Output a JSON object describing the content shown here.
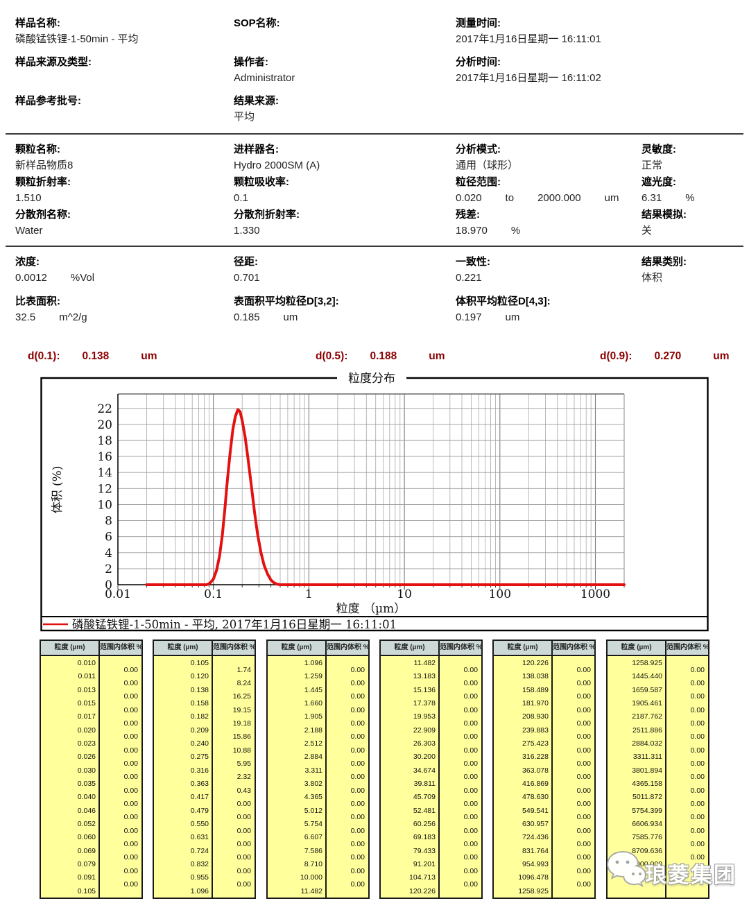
{
  "colors": {
    "d_row_red": "#8b0000",
    "curve_red": "#e41111",
    "table_header_bg": "#ccd9d6",
    "table_body_bg": "#ffff9c",
    "grid_gray": "#9a9a9a"
  },
  "info_sections": [
    {
      "columns": [
        [
          {
            "label": "样品名称:",
            "parts": [
              "磷酸锰铁锂-1-50min - 平均"
            ]
          },
          {
            "label": "样品来源及类型:",
            "parts": []
          },
          {
            "label": "样品参考批号:",
            "parts": []
          }
        ],
        [
          {
            "label": "SOP名称:",
            "parts": []
          },
          {
            "label": "操作者:",
            "parts": [
              "Administrator"
            ]
          },
          {
            "label": "结果来源:",
            "parts": [
              "平均"
            ]
          }
        ],
        [
          {
            "label": "测量时间:",
            "parts": [
              "2017年1月16日星期一 16:11:01"
            ]
          },
          {
            "label": "分析时间:",
            "parts": [
              "2017年1月16日星期一 16:11:02"
            ]
          }
        ]
      ]
    },
    {
      "columns": [
        [
          {
            "label": "颗粒名称:",
            "parts": [
              "新样品物质8"
            ]
          },
          {
            "label": "颗粒折射率:",
            "parts": [
              "1.510"
            ]
          },
          {
            "label": "分散剂名称:",
            "parts": [
              "Water"
            ]
          }
        ],
        [
          {
            "label": "进样器名:",
            "parts": [
              "Hydro 2000SM (A)"
            ]
          },
          {
            "label": "颗粒吸收率:",
            "parts": [
              "0.1"
            ]
          },
          {
            "label": "分散剂折射率:",
            "parts": [
              "1.330"
            ]
          }
        ],
        [
          {
            "label": "分析模式:",
            "parts": [
              "通用（球形）"
            ]
          },
          {
            "label": "粒径范围:",
            "parts": [
              "0.020",
              "to",
              "2000.000",
              "um"
            ]
          },
          {
            "label": "残差:",
            "parts": [
              "18.970",
              "%"
            ]
          }
        ],
        [
          {
            "label": "灵敏度:",
            "parts": [
              "正常"
            ]
          },
          {
            "label": "遮光度:",
            "parts": [
              "6.31",
              "%"
            ]
          },
          {
            "label": "结果模拟:",
            "parts": [
              "关"
            ]
          }
        ]
      ]
    },
    {
      "columns": [
        [
          {
            "label": "浓度:",
            "parts": [
              "0.0012",
              "%Vol"
            ]
          },
          {
            "label": "比表面积:",
            "parts": [
              "32.5",
              "m^2/g"
            ]
          }
        ],
        [
          {
            "label": "径距:",
            "parts": [
              "0.701"
            ]
          },
          {
            "label": "表面积平均粒径D[3,2]:",
            "parts": [
              "0.185",
              "um"
            ]
          }
        ],
        [
          {
            "label": "一致性:",
            "parts": [
              "0.221"
            ]
          },
          {
            "label": "体积平均粒径D[4,3]:",
            "parts": [
              "0.197",
              "um"
            ]
          }
        ],
        [
          {
            "label": "结果类别:",
            "parts": [
              "体积"
            ]
          }
        ]
      ]
    }
  ],
  "d_values": [
    {
      "label": "d(0.1):",
      "value": "0.138",
      "unit": "um"
    },
    {
      "label": "d(0.5):",
      "value": "0.188",
      "unit": "um"
    },
    {
      "label": "d(0.9):",
      "value": "0.270",
      "unit": "um"
    }
  ],
  "chart_data": {
    "type": "line",
    "title": "粒度分布",
    "xlabel": "粒度 （µm）",
    "ylabel": "体积 (%)",
    "x_scale": "log",
    "xlim": [
      0.01,
      2000
    ],
    "ylim": [
      0,
      23.8
    ],
    "x_tick_labels": [
      "0.01",
      "0.1",
      "1",
      "10",
      "100",
      "1000"
    ],
    "x_ticks": [
      0.01,
      0.1,
      1,
      10,
      100,
      1000
    ],
    "y_ticks": [
      0,
      2,
      4,
      6,
      8,
      10,
      12,
      14,
      16,
      18,
      20,
      22
    ],
    "grid": true,
    "legend": "磷酸锰铁锂-1-50min - 平均, 2017年1月16日星期一 16:11:01",
    "series_color": "#e41111",
    "baseline_x": [
      0.02,
      2000
    ],
    "curve_points": [
      [
        0.085,
        0
      ],
      [
        0.092,
        0.2
      ],
      [
        0.1,
        0.7
      ],
      [
        0.108,
        1.8
      ],
      [
        0.116,
        3.6
      ],
      [
        0.124,
        6.2
      ],
      [
        0.132,
        9.5
      ],
      [
        0.14,
        13.0
      ],
      [
        0.15,
        16.6
      ],
      [
        0.16,
        19.4
      ],
      [
        0.17,
        21.0
      ],
      [
        0.18,
        21.85
      ],
      [
        0.19,
        21.6
      ],
      [
        0.2,
        20.5
      ],
      [
        0.215,
        18.4
      ],
      [
        0.23,
        15.8
      ],
      [
        0.25,
        12.3
      ],
      [
        0.27,
        9.0
      ],
      [
        0.29,
        6.3
      ],
      [
        0.315,
        4.0
      ],
      [
        0.34,
        2.4
      ],
      [
        0.37,
        1.3
      ],
      [
        0.4,
        0.6
      ],
      [
        0.43,
        0.25
      ],
      [
        0.46,
        0.08
      ],
      [
        0.5,
        0
      ]
    ]
  },
  "tables": {
    "header": [
      "粒度 (µm)",
      "范围内体积 %"
    ],
    "groups": [
      {
        "sizes": [
          "0.010",
          "0.011",
          "0.013",
          "0.015",
          "0.017",
          "0.020",
          "0.023",
          "0.026",
          "0.030",
          "0.035",
          "0.040",
          "0.046",
          "0.052",
          "0.060",
          "0.069",
          "0.079",
          "0.091",
          "0.105"
        ],
        "volumes": [
          "0.00",
          "0.00",
          "0.00",
          "0.00",
          "0.00",
          "0.00",
          "0.00",
          "0.00",
          "0.00",
          "0.00",
          "0.00",
          "0.00",
          "0.00",
          "0.00",
          "0.00",
          "0.00",
          "0.00"
        ]
      },
      {
        "sizes": [
          "0.105",
          "0.120",
          "0.138",
          "0.158",
          "0.182",
          "0.209",
          "0.240",
          "0.275",
          "0.316",
          "0.363",
          "0.417",
          "0.479",
          "0.550",
          "0.631",
          "0.724",
          "0.832",
          "0.955",
          "1.096"
        ],
        "volumes": [
          "1.74",
          "8.24",
          "16.25",
          "19.15",
          "19.18",
          "15.86",
          "10.88",
          "5.95",
          "2.32",
          "0.43",
          "0.00",
          "0.00",
          "0.00",
          "0.00",
          "0.00",
          "0.00",
          "0.00"
        ]
      },
      {
        "sizes": [
          "1.096",
          "1.259",
          "1.445",
          "1.660",
          "1.905",
          "2.188",
          "2.512",
          "2.884",
          "3.311",
          "3.802",
          "4.365",
          "5.012",
          "5.754",
          "6.607",
          "7.586",
          "8.710",
          "10.000",
          "11.482"
        ],
        "volumes": [
          "0.00",
          "0.00",
          "0.00",
          "0.00",
          "0.00",
          "0.00",
          "0.00",
          "0.00",
          "0.00",
          "0.00",
          "0.00",
          "0.00",
          "0.00",
          "0.00",
          "0.00",
          "0.00",
          "0.00"
        ]
      },
      {
        "sizes": [
          "11.482",
          "13.183",
          "15.136",
          "17.378",
          "19.953",
          "22.909",
          "26.303",
          "30.200",
          "34.674",
          "39.811",
          "45.709",
          "52.481",
          "60.256",
          "69.183",
          "79.433",
          "91.201",
          "104.713",
          "120.226"
        ],
        "volumes": [
          "0.00",
          "0.00",
          "0.00",
          "0.00",
          "0.00",
          "0.00",
          "0.00",
          "0.00",
          "0.00",
          "0.00",
          "0.00",
          "0.00",
          "0.00",
          "0.00",
          "0.00",
          "0.00",
          "0.00"
        ]
      },
      {
        "sizes": [
          "120.226",
          "138.038",
          "158.489",
          "181.970",
          "208.930",
          "239.883",
          "275.423",
          "316.228",
          "363.078",
          "416.869",
          "478.630",
          "549.541",
          "630.957",
          "724.436",
          "831.764",
          "954.993",
          "1096.478",
          "1258.925"
        ],
        "volumes": [
          "0.00",
          "0.00",
          "0.00",
          "0.00",
          "0.00",
          "0.00",
          "0.00",
          "0.00",
          "0.00",
          "0.00",
          "0.00",
          "0.00",
          "0.00",
          "0.00",
          "0.00",
          "0.00",
          "0.00"
        ]
      },
      {
        "sizes": [
          "1258.925",
          "1445.440",
          "1659.587",
          "1905.461",
          "2187.762",
          "2511.886",
          "2884.032",
          "3311.311",
          "3801.894",
          "4365.158",
          "5011.872",
          "5754.399",
          "6606.934",
          "7585.776",
          "8709.636",
          "10000.000"
        ],
        "volumes": [
          "0.00",
          "0.00",
          "0.00",
          "0.00",
          "0.00",
          "0.00",
          "0.00",
          "0.00",
          "0.00",
          "0.00",
          "0.00",
          "0.00",
          "0.00",
          "0.00",
          "0.00"
        ]
      }
    ]
  },
  "watermark": {
    "text": "琅菱集团"
  }
}
